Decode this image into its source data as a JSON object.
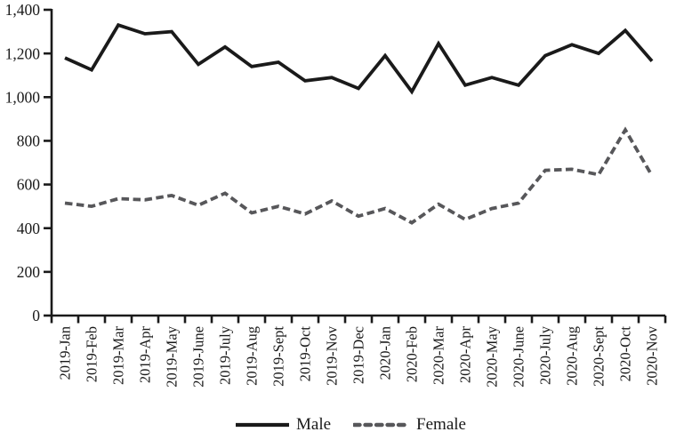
{
  "chart_data": {
    "type": "line",
    "title": "",
    "xlabel": "",
    "ylabel": "",
    "grid": false,
    "legend_position": "bottom",
    "ylim": [
      0,
      1400
    ],
    "y_ticks": [
      0,
      200,
      400,
      600,
      800,
      1000,
      1200,
      1400
    ],
    "y_tick_labels": [
      "0",
      "200",
      "400",
      "600",
      "800",
      "1,000",
      "1,200",
      "1,400"
    ],
    "x_categories": [
      "2019-Jan",
      "2019-Feb",
      "2019-Mar",
      "2019-Apr",
      "2019-May",
      "2019-June",
      "2019-July",
      "2019-Aug",
      "2019-Sept",
      "2019-Oct",
      "2019-Nov",
      "2019-Dec",
      "2020-Jan",
      "2020-Feb",
      "2020-Mar",
      "2020-Apr",
      "2020-May",
      "2020-June",
      "2020-July",
      "2020-Aug",
      "2020-Sept",
      "2020-Oct",
      "2020-Nov"
    ],
    "series": [
      {
        "name": "Male",
        "style": "solid",
        "color": "#1a1a1a",
        "values": [
          1180,
          1125,
          1330,
          1290,
          1300,
          1150,
          1230,
          1140,
          1160,
          1075,
          1090,
          1040,
          1190,
          1025,
          1245,
          1055,
          1090,
          1055,
          1190,
          1240,
          1200,
          1305,
          1165
        ]
      },
      {
        "name": "Female",
        "style": "dashed",
        "color": "#57575a",
        "values": [
          515,
          500,
          535,
          530,
          550,
          505,
          560,
          470,
          500,
          465,
          525,
          455,
          490,
          425,
          510,
          440,
          490,
          515,
          665,
          670,
          645,
          850,
          640
        ]
      }
    ]
  },
  "legend": {
    "male_label": "Male",
    "female_label": "Female"
  }
}
